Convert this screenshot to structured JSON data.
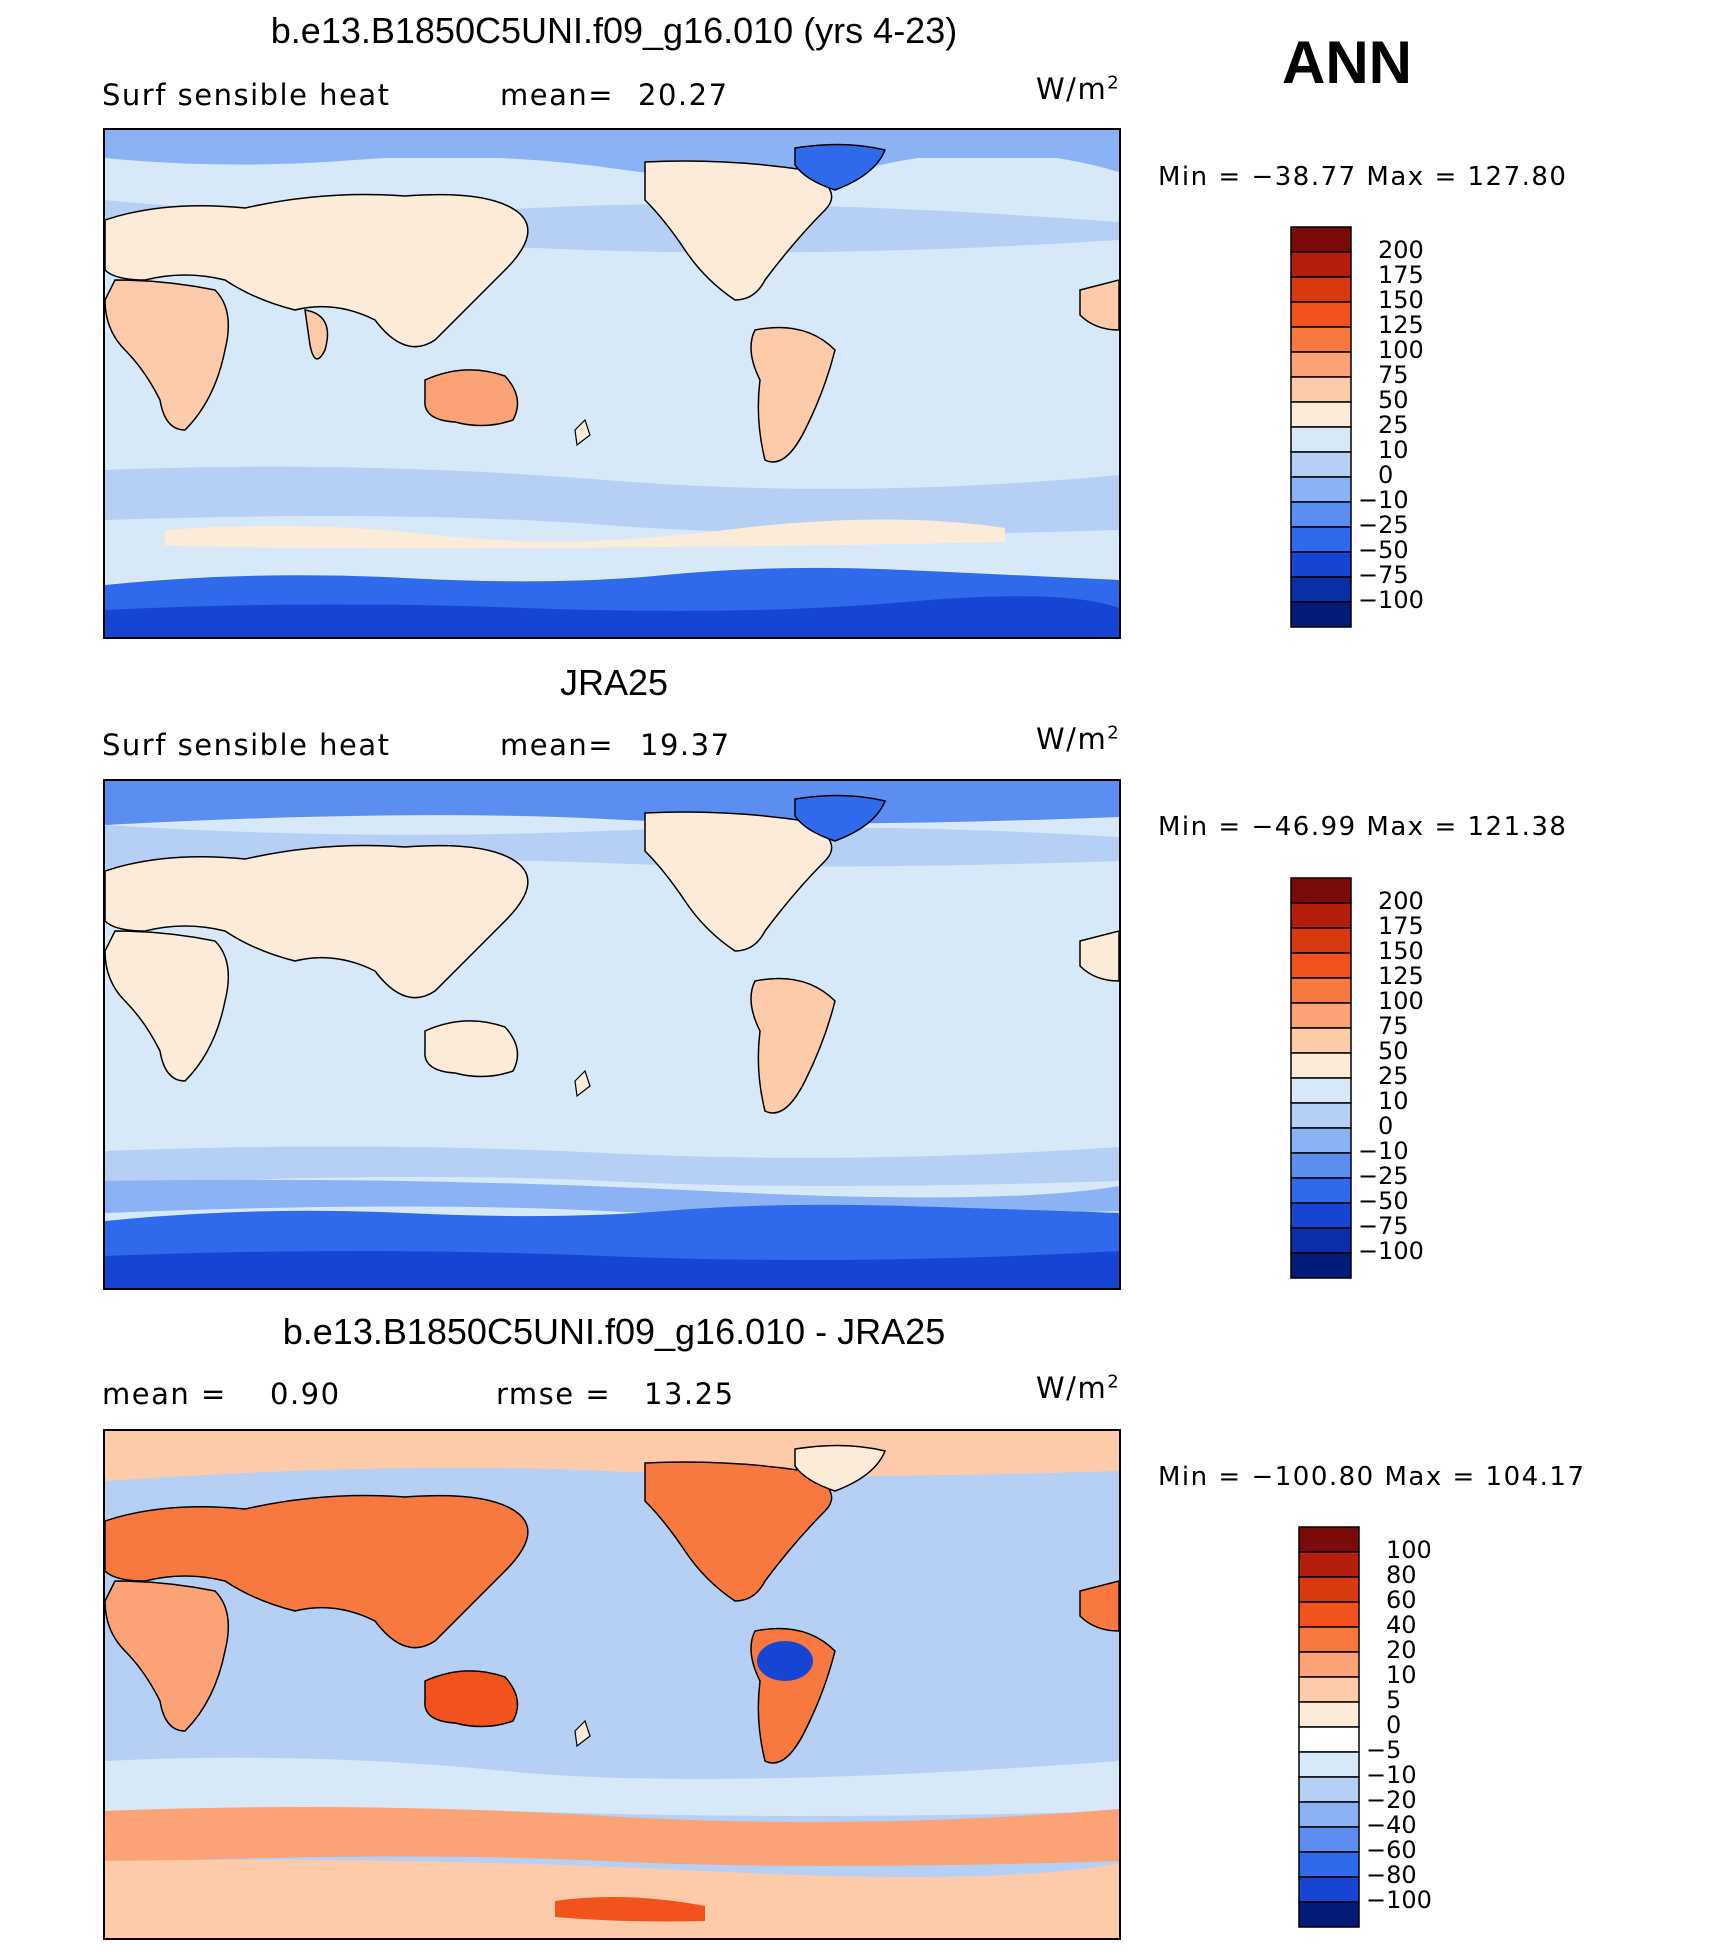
{
  "season": "ANN",
  "units": "W/m",
  "units_exp": "2",
  "panels": [
    {
      "id": "model",
      "title": "b.e13.B1850C5UNI.f09_g16.010 (yrs 4-23)",
      "left_label": "Surf  sensible  heat",
      "stat1_label": "mean=",
      "stat1_value": "20.27",
      "stat2_label": "",
      "stat2_value": "",
      "minmax": "Min  =  −38.77  Max  =  127.80",
      "colorbar": {
        "labels": [
          "200",
          "175",
          "150",
          "125",
          "100",
          "75",
          "50",
          "25",
          "10",
          "0",
          "−10",
          "−25",
          "−50",
          "−75",
          "−100"
        ],
        "colors": [
          "#7b0b0b",
          "#b51e0c",
          "#d83a10",
          "#f2531d",
          "#f8793f",
          "#fca277",
          "#fdcbaa",
          "#fdebd9",
          "#d7e8f8",
          "#b5cff5",
          "#8bb2f5",
          "#5b8ef0",
          "#2f69ec",
          "#1545d2",
          "#0a2fa8",
          "#031b78"
        ]
      }
    },
    {
      "id": "obs",
      "title": "JRA25",
      "left_label": "Surf  sensible  heat",
      "stat1_label": "mean=",
      "stat1_value": "19.37",
      "stat2_label": "",
      "stat2_value": "",
      "minmax": "Min  =  −46.99  Max  =  121.38",
      "colorbar": {
        "labels": [
          "200",
          "175",
          "150",
          "125",
          "100",
          "75",
          "50",
          "25",
          "10",
          "0",
          "−10",
          "−25",
          "−50",
          "−75",
          "−100"
        ],
        "colors": [
          "#7b0b0b",
          "#b51e0c",
          "#d83a10",
          "#f2531d",
          "#f8793f",
          "#fca277",
          "#fdcbaa",
          "#fdebd9",
          "#d7e8f8",
          "#b5cff5",
          "#8bb2f5",
          "#5b8ef0",
          "#2f69ec",
          "#1545d2",
          "#0a2fa8",
          "#031b78"
        ]
      }
    },
    {
      "id": "diff",
      "title": "b.e13.B1850C5UNI.f09_g16.010 - JRA25",
      "left_label": "mean  =",
      "stat1_label": "",
      "stat1_value": "0.90",
      "stat2_label": "rmse  =",
      "stat2_value": "13.25",
      "minmax": "Min  =  −100.80  Max  =  104.17",
      "colorbar": {
        "labels": [
          "100",
          "80",
          "60",
          "40",
          "20",
          "10",
          "5",
          "0",
          "−5",
          "−10",
          "−20",
          "−40",
          "−60",
          "−80",
          "−100"
        ],
        "colors": [
          "#7b0b0b",
          "#b51e0c",
          "#d83a10",
          "#f2531d",
          "#f8793f",
          "#fca277",
          "#fdcbaa",
          "#fdebd9",
          "#ffffff",
          "#d7e8f8",
          "#b5cff5",
          "#8bb2f5",
          "#5b8ef0",
          "#2f69ec",
          "#1545d2",
          "#031b78"
        ]
      }
    }
  ]
}
